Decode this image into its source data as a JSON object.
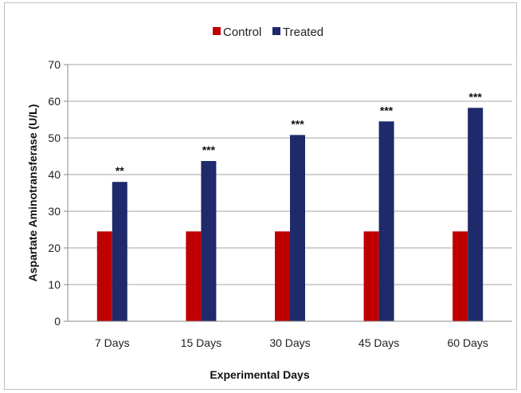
{
  "chart_data": {
    "type": "bar",
    "title": "",
    "xlabel": "Experimental Days",
    "ylabel": "Aspartate Aminotransferase (U/L)",
    "ylim": [
      0,
      70
    ],
    "yticks": [
      0,
      10,
      20,
      30,
      40,
      50,
      60,
      70
    ],
    "grid": true,
    "legend_position": "top-center",
    "categories": [
      "7 Days",
      "15 Days",
      "30 Days",
      "45 Days",
      "60 Days"
    ],
    "series": [
      {
        "name": "Control",
        "color": "#C00000",
        "values": [
          24.5,
          24.5,
          24.5,
          24.5,
          24.5
        ]
      },
      {
        "name": "Treated",
        "color": "#1F2A6B",
        "values": [
          38,
          43.7,
          50.8,
          54.5,
          58.2
        ]
      }
    ],
    "annotations": [
      "**",
      "***",
      "***",
      "***",
      "***"
    ]
  }
}
